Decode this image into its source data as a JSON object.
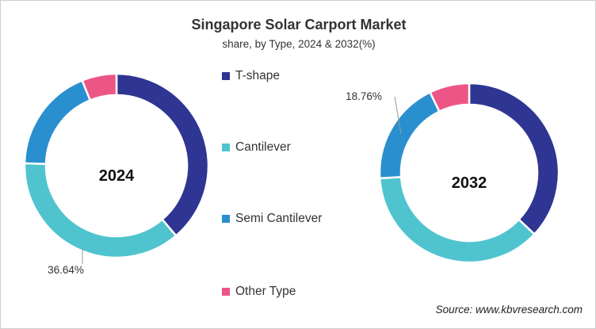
{
  "chart_data": {
    "type": "donut",
    "title": "Singapore Solar Carport Market",
    "subtitle": "share, by Type, 2024 & 2032(%)",
    "legend_position": "center",
    "categories": [
      "T-shape",
      "Cantilever",
      "Semi Cantilever",
      "Other Type"
    ],
    "colors": [
      "#2e3592",
      "#4fc4cf",
      "#2a8fcf",
      "#ec5686"
    ],
    "charts": [
      {
        "center_label": "2024",
        "values": [
          38.8,
          36.64,
          18.5,
          6.1
        ],
        "data_label": "36.64%",
        "data_label_category": "Cantilever"
      },
      {
        "center_label": "2032",
        "values": [
          37.0,
          37.0,
          18.76,
          7.2
        ],
        "data_label": "18.76%",
        "data_label_category": "Semi Cantilever"
      }
    ]
  },
  "source": "Source: www.kbvresearch.com"
}
